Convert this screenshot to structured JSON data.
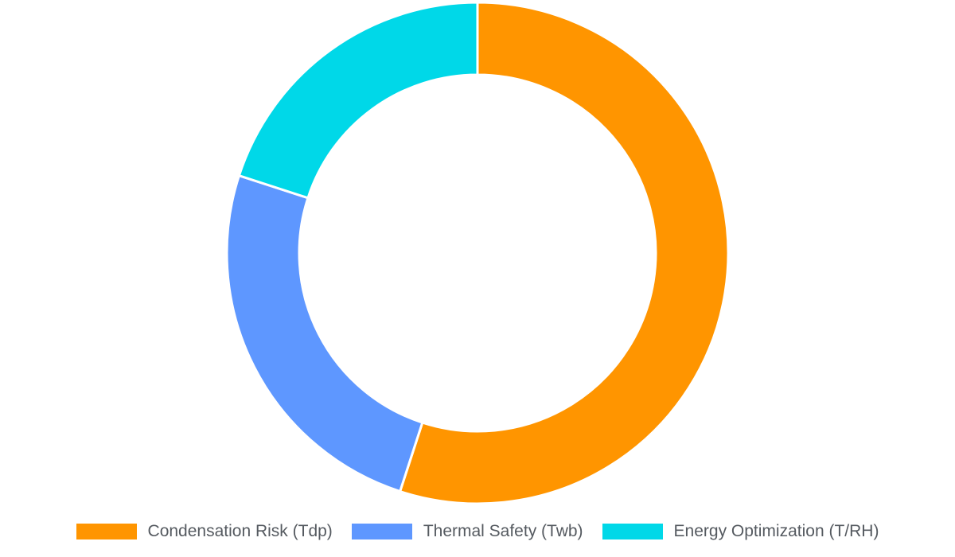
{
  "chart_data": {
    "type": "pie",
    "variant": "donut",
    "categories": [
      "Condensation Risk (Tdp)",
      "Thermal Safety (Twb)",
      "Energy Optimization (T/RH)"
    ],
    "values": [
      55,
      25,
      20
    ],
    "colors": [
      "#ff9500",
      "#5e97ff",
      "#00d8e8"
    ],
    "legend": "bottom",
    "title": ""
  }
}
